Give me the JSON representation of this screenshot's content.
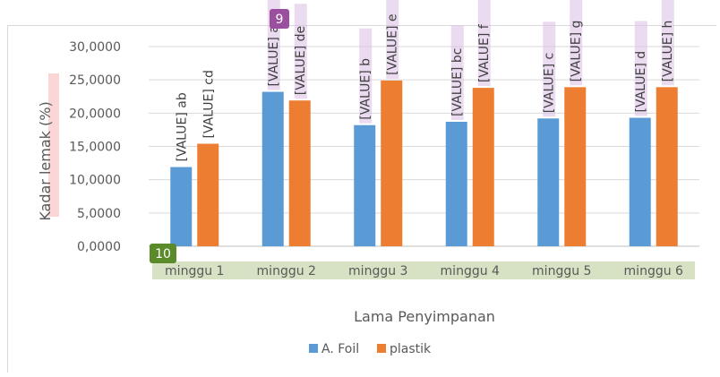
{
  "chart_data": {
    "type": "bar",
    "title": "",
    "xlabel": "Lama Penyimpanan",
    "ylabel": "Kadar lemak (%)",
    "ylim": [
      0,
      30
    ],
    "y_ticks": [
      "0,0000",
      "5,0000",
      "10,0000",
      "15,0000",
      "20,0000",
      "25,0000",
      "30,0000"
    ],
    "categories": [
      "minggu 1",
      "minggu 2",
      "minggu 3",
      "minggu 4",
      "minggu 5",
      "minggu 6"
    ],
    "series": [
      {
        "name": "A. Foil",
        "color": "#5b9bd5",
        "values": [
          11.9,
          23.2,
          18.2,
          18.7,
          19.2,
          19.3
        ],
        "labels": [
          "[VALUE] ab",
          "[VALUE] a",
          "[VALUE] b",
          "[VALUE] bc",
          "[VALUE] c",
          "[VALUE] d"
        ]
      },
      {
        "name": "plastik",
        "color": "#ed7d31",
        "values": [
          15.4,
          21.9,
          24.9,
          23.8,
          23.9,
          23.9
        ],
        "labels": [
          "[VALUE] cd",
          "[VALUE] de",
          "[VALUE] e",
          "[VALUE] f",
          "[VALUE] g",
          "[VALUE] h"
        ]
      }
    ],
    "grid": true,
    "legend_position": "bottom"
  },
  "annotations": {
    "badge_top": {
      "text": "9",
      "color": "#9b4f9f"
    },
    "badge_bottom": {
      "text": "10",
      "color": "#5a8a2a"
    }
  }
}
